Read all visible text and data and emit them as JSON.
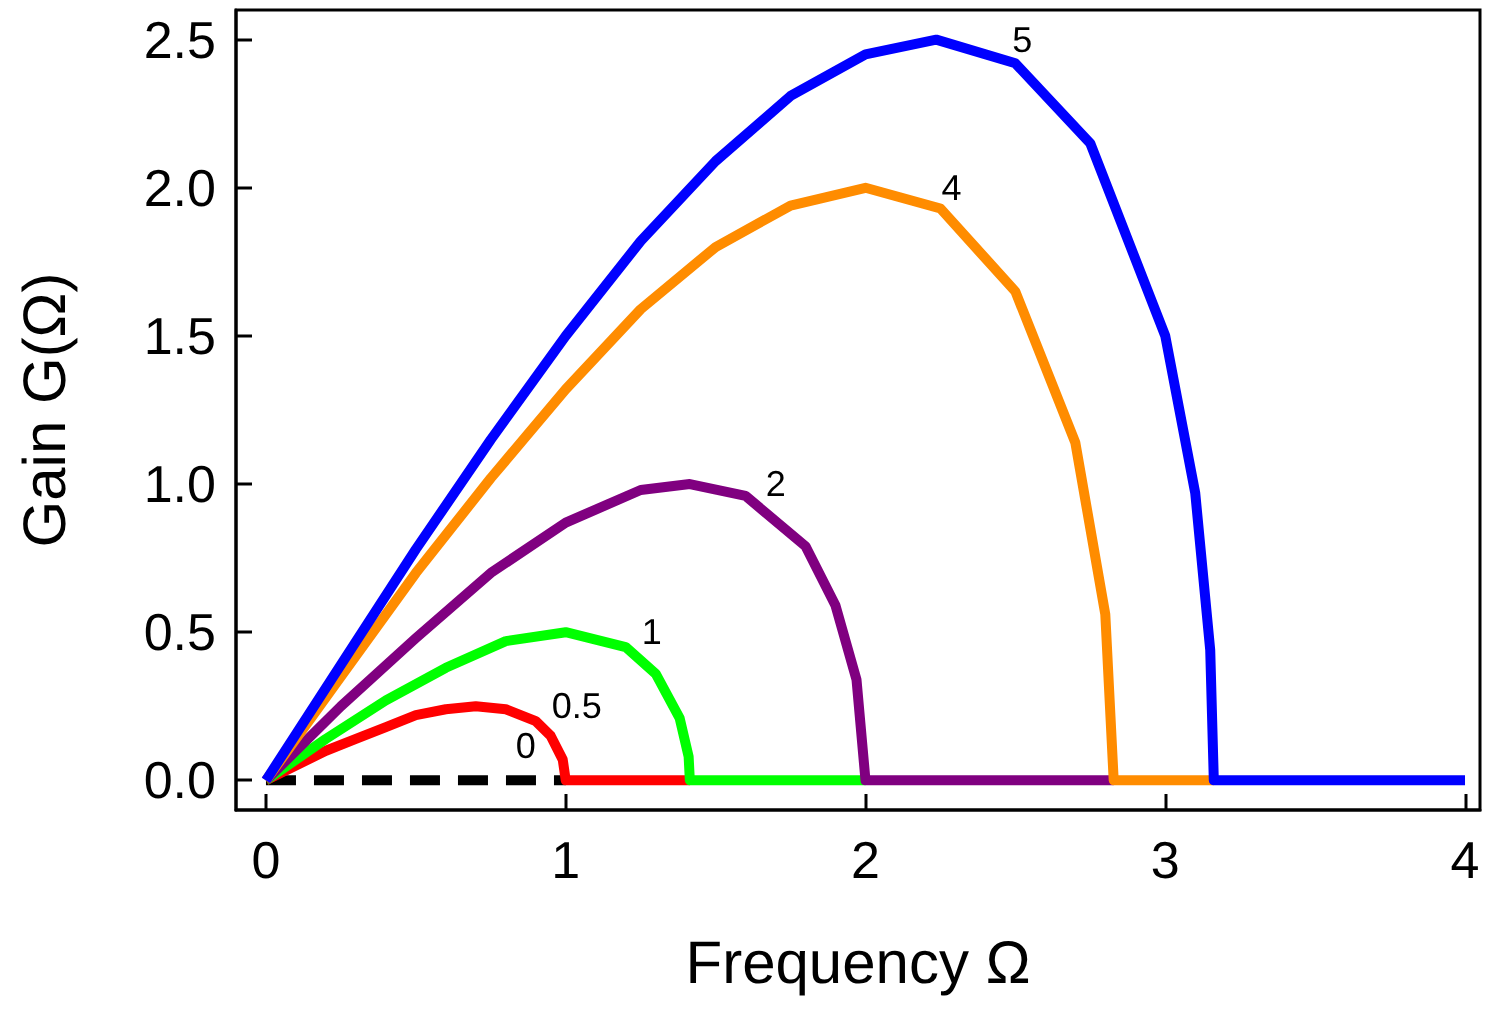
{
  "chart_data": {
    "type": "line",
    "xlabel": "Frequency Ω",
    "ylabel": "Gain G(Ω)",
    "xlim": [
      -0.1,
      4.05
    ],
    "ylim": [
      -0.1,
      2.6
    ],
    "xticks": [
      0,
      1,
      2,
      3,
      4
    ],
    "yticks": [
      {
        "value": 0,
        "label": "0.0"
      },
      0.5,
      {
        "value": 1,
        "label": "1.0"
      },
      1.5,
      {
        "value": 2,
        "label": "2.0"
      },
      2.5
    ],
    "grid": false,
    "marker": "none",
    "series": [
      {
        "name": "0",
        "color": "#000000",
        "line_style": "dashed",
        "x": [
          0,
          1
        ],
        "values": [
          0,
          0
        ]
      },
      {
        "name": "0.5",
        "color": "#ff0000",
        "line_style": "solid",
        "x": [
          0,
          0.1,
          0.2,
          0.3,
          0.4,
          0.5,
          0.6,
          0.7,
          0.8,
          0.9,
          0.95,
          0.99,
          1,
          1.414
        ],
        "values": [
          0,
          0.05,
          0.1,
          0.14,
          0.18,
          0.22,
          0.24,
          0.25,
          0.24,
          0.2,
          0.15,
          0.07,
          0,
          0
        ]
      },
      {
        "name": "1",
        "color": "#00ff00",
        "line_style": "solid",
        "x": [
          0,
          0.2,
          0.4,
          0.6,
          0.8,
          1,
          1.2,
          1.3,
          1.38,
          1.41,
          1.414,
          2
        ],
        "values": [
          0,
          0.14,
          0.27,
          0.38,
          0.47,
          0.5,
          0.45,
          0.36,
          0.21,
          0.08,
          0,
          0
        ]
      },
      {
        "name": "2",
        "color": "#800080",
        "line_style": "solid",
        "x": [
          0,
          0.25,
          0.5,
          0.75,
          1,
          1.25,
          1.414,
          1.6,
          1.8,
          1.9,
          1.97,
          2,
          2.828
        ],
        "values": [
          0,
          0.25,
          0.48,
          0.7,
          0.87,
          0.98,
          1,
          0.96,
          0.79,
          0.59,
          0.34,
          0,
          0
        ]
      },
      {
        "name": "4",
        "color": "#ff8c00",
        "line_style": "solid",
        "x": [
          0,
          0.25,
          0.5,
          0.75,
          1,
          1.25,
          1.5,
          1.75,
          2,
          2.25,
          2.5,
          2.7,
          2.8,
          2.828,
          3.162
        ],
        "values": [
          0,
          0.35,
          0.7,
          1.02,
          1.32,
          1.59,
          1.8,
          1.94,
          2,
          1.93,
          1.65,
          1.14,
          0.56,
          0,
          0
        ]
      },
      {
        "name": "5",
        "color": "#0000ff",
        "line_style": "solid",
        "x": [
          0,
          0.25,
          0.5,
          0.75,
          1,
          1.25,
          1.5,
          1.75,
          2,
          2.236,
          2.5,
          2.75,
          3,
          3.1,
          3.15,
          3.162,
          4
        ],
        "values": [
          0,
          0.39,
          0.78,
          1.15,
          1.5,
          1.82,
          2.09,
          2.31,
          2.45,
          2.5,
          2.42,
          2.15,
          1.5,
          0.97,
          0.44,
          0,
          0
        ]
      }
    ]
  }
}
